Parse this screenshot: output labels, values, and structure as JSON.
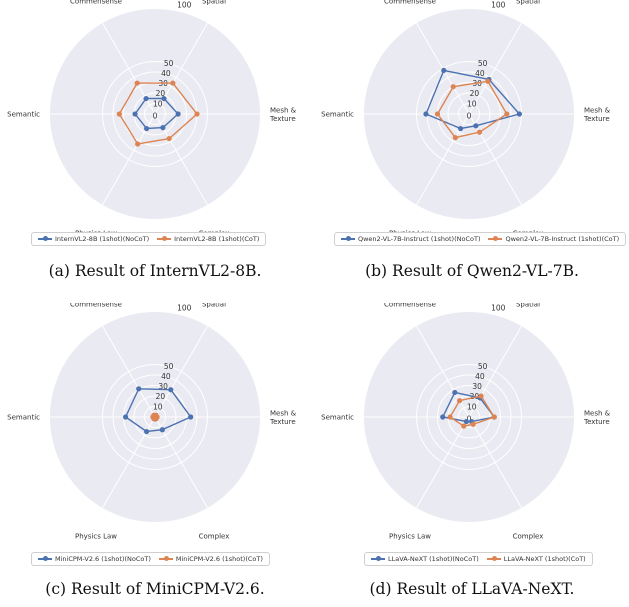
{
  "colors": {
    "series1": "#4c72b0",
    "series2": "#dd8452",
    "background": "#eaeaf2",
    "grid": "#ffffff"
  },
  "chart_data": [
    {
      "type": "radar",
      "caption": "(a) Result of InternVL2-8B.",
      "axes": [
        "Spatial",
        "Commensense",
        "Semantic",
        "Physics Law",
        "Complex",
        "Mesh &\nTexture"
      ],
      "radial_ticks": [
        "0",
        "10",
        "20",
        "30",
        "40",
        "50",
        "100"
      ],
      "series": [
        {
          "name": "InternVL2-8B (1shot)(NoCoT)",
          "values": [
            17,
            17,
            19,
            16,
            15,
            22
          ]
        },
        {
          "name": "InternVL2-8B (1shot)(CoT)",
          "values": [
            34,
            34,
            34,
            33,
            27,
            40
          ]
        }
      ]
    },
    {
      "type": "radar",
      "caption": "(b) Result of Qwen2-VL-7B.",
      "axes": [
        "Spatial",
        "Commensense",
        "Semantic",
        "Physics Law",
        "Complex",
        "Mesh &\nTexture"
      ],
      "radial_ticks": [
        "0",
        "10",
        "20",
        "30",
        "40",
        "50",
        "100"
      ],
      "series": [
        {
          "name": "Qwen2-VL-7B-Instruct (1shot)(NoCoT)",
          "values": [
            38,
            48,
            41,
            16,
            13,
            48
          ]
        },
        {
          "name": "Qwen2-VL-7B-Instruct (1shot)(CoT)",
          "values": [
            36,
            30,
            30,
            26,
            20,
            36
          ]
        }
      ]
    },
    {
      "type": "radar",
      "caption": "(c) Result of MiniCPM-V2.6.",
      "axes": [
        "Spatial",
        "Commensense",
        "Semantic",
        "Physics Law",
        "Complex",
        "Mesh &\nTexture"
      ],
      "radial_ticks": [
        "0",
        "10",
        "20",
        "30",
        "40",
        "50",
        "100"
      ],
      "series": [
        {
          "name": "MiniCPM-V2.6 (1shot)(NoCoT)",
          "values": [
            30,
            31,
            28,
            16,
            14,
            34
          ]
        },
        {
          "name": "MiniCPM-V2.6 (1shot)(CoT)",
          "values": [
            2,
            2,
            2,
            2,
            2,
            2
          ]
        }
      ]
    },
    {
      "type": "radar",
      "caption": "(d) Result of LLaVA-NeXT.",
      "axes": [
        "Spatial",
        "Commensense",
        "Semantic",
        "Physics Law",
        "Complex",
        "Mesh &\nTexture"
      ],
      "radial_ticks": [
        "0",
        "10",
        "20",
        "30",
        "40",
        "50",
        "100"
      ],
      "series": [
        {
          "name": "LLaVA-NeXT (1shot)(NoCoT)",
          "values": [
            21,
            27,
            25,
            5,
            5,
            24
          ]
        },
        {
          "name": "LLaVA-NeXT (1shot)(CoT)",
          "values": [
            23,
            18,
            18,
            10,
            8,
            24
          ]
        }
      ]
    }
  ]
}
